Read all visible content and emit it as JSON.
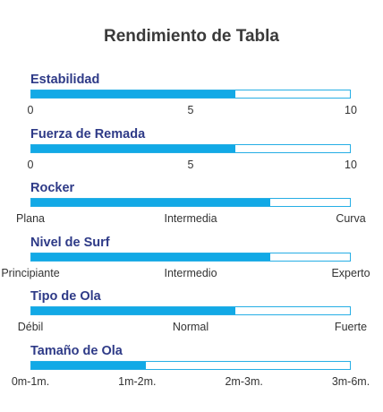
{
  "title": "Rendimiento de Tabla",
  "colors": {
    "fill": "#12a9e6",
    "border": "#26aee5",
    "label": "#2e3a87",
    "title": "#3a3a3a",
    "tick": "#333333"
  },
  "chart_data": {
    "type": "bar",
    "orientation": "horizontal",
    "title": "Rendimiento de Tabla",
    "metrics": [
      {
        "label": "Estabilidad",
        "value": 0.64,
        "ticks": [
          "0",
          "5",
          "10"
        ]
      },
      {
        "label": "Fuerza de Remada",
        "value": 0.64,
        "ticks": [
          "0",
          "5",
          "10"
        ]
      },
      {
        "label": "Rocker",
        "value": 0.75,
        "ticks": [
          "Plana",
          "Intermedia",
          "Curva"
        ]
      },
      {
        "label": "Nivel de Surf",
        "value": 0.75,
        "ticks": [
          "Principiante",
          "Intermedio",
          "Experto"
        ]
      },
      {
        "label": "Tipo de Ola",
        "value": 0.64,
        "ticks": [
          "Débil",
          "Normal",
          "Fuerte"
        ]
      },
      {
        "label": "Tamaño de Ola",
        "value": 0.36,
        "ticks": [
          "0m-1m.",
          "1m-2m.",
          "2m-3m.",
          "3m-6m."
        ]
      }
    ]
  }
}
